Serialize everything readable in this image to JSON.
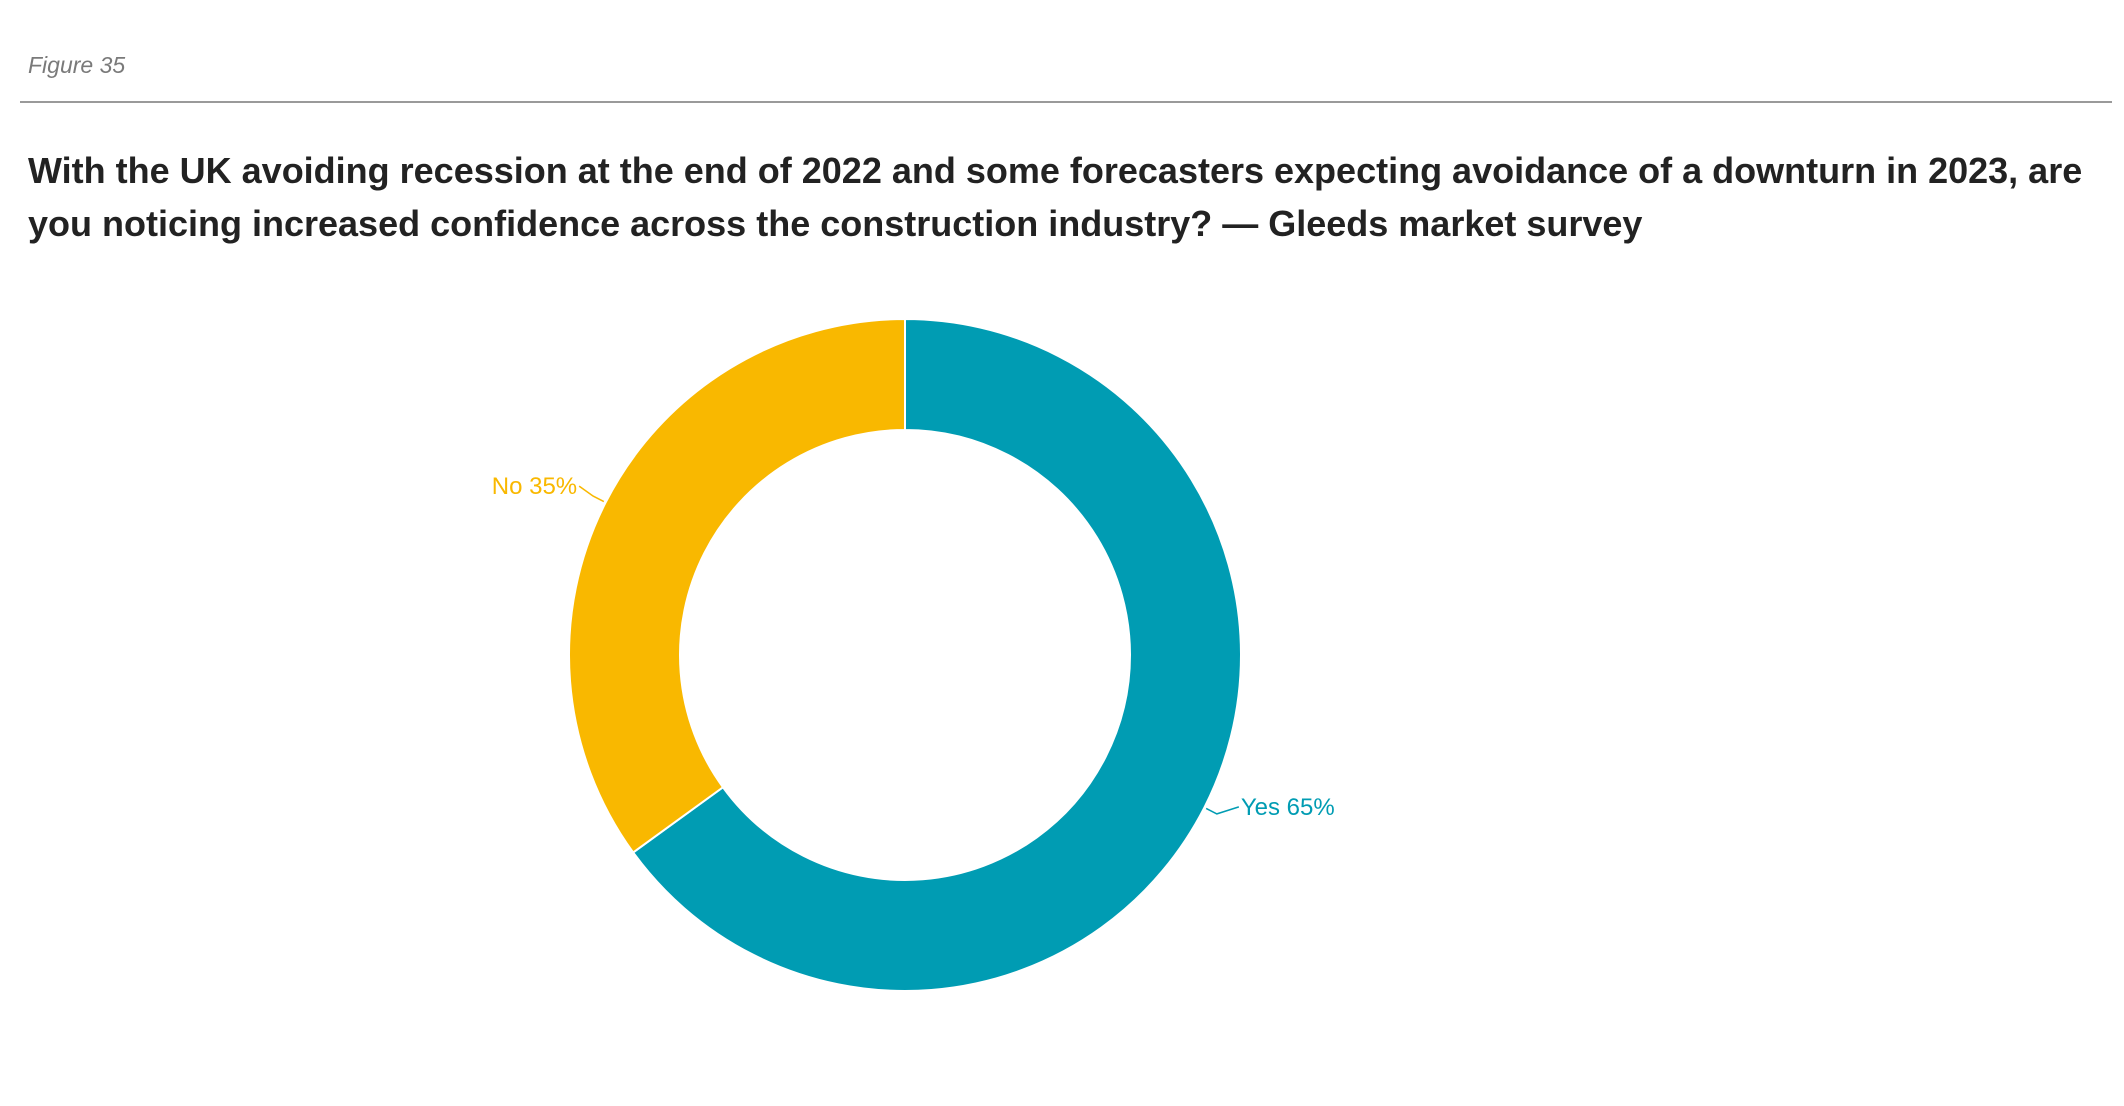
{
  "figure_label": "Figure 35",
  "title": "With the UK avoiding recession at the end of 2022 and some forecasters expecting avoidance of a downturn in 2023, are you noticing increased confidence across the construction industry? — Gleeds market survey",
  "colors": {
    "yes": "#009cb3",
    "no": "#f9b800",
    "rule": "#9a9a9a"
  },
  "chart_data": {
    "type": "pie",
    "variant": "donut",
    "title": "With the UK avoiding recession at the end of 2022 and some forecasters expecting avoidance of a downturn in 2023, are you noticing increased confidence across the construction industry? — Gleeds market survey",
    "categories": [
      "Yes",
      "No"
    ],
    "values": [
      65,
      35
    ],
    "unit": "%",
    "labels": [
      "Yes 65%",
      "No 35%"
    ],
    "colors": [
      "#009cb3",
      "#f9b800"
    ],
    "start_angle": "12 o'clock",
    "direction": "clockwise"
  }
}
